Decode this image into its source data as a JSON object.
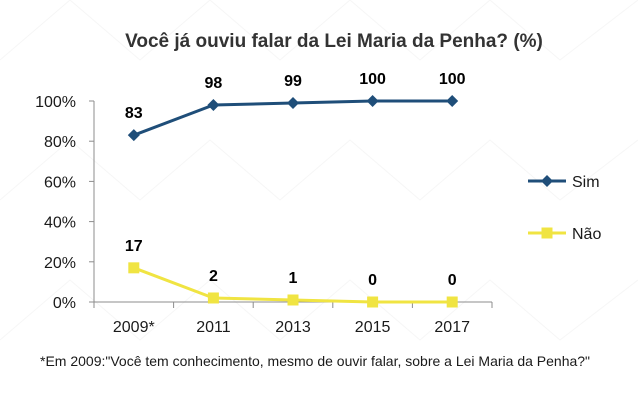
{
  "chart_data": {
    "type": "line",
    "title": "Você já ouviu falar da Lei Maria da Penha? (%)",
    "categories": [
      "2009*",
      "2011",
      "2013",
      "2015",
      "2017"
    ],
    "ylim": [
      0,
      100
    ],
    "yticks": [
      0,
      20,
      40,
      60,
      80,
      100
    ],
    "ytick_labels": [
      "0%",
      "20%",
      "40%",
      "60%",
      "80%",
      "100%"
    ],
    "xlabel": "",
    "ylabel": "",
    "grid": false,
    "legend_position": "right",
    "series": [
      {
        "name": "Sim",
        "values": [
          83,
          98,
          99,
          100,
          100
        ],
        "labels": [
          "83",
          "98",
          "99",
          "100",
          "100"
        ],
        "color": "#1f4e79",
        "marker": "diamond"
      },
      {
        "name": "Não",
        "values": [
          17,
          2,
          1,
          0,
          0
        ],
        "labels": [
          "17",
          "2",
          "1",
          "0",
          "0"
        ],
        "color": "#f0e442",
        "marker": "square"
      }
    ],
    "footnote": "*Em 2009:\"Você tem conhecimento, mesmo de ouvir falar, sobre a Lei Maria da Penha?\""
  }
}
